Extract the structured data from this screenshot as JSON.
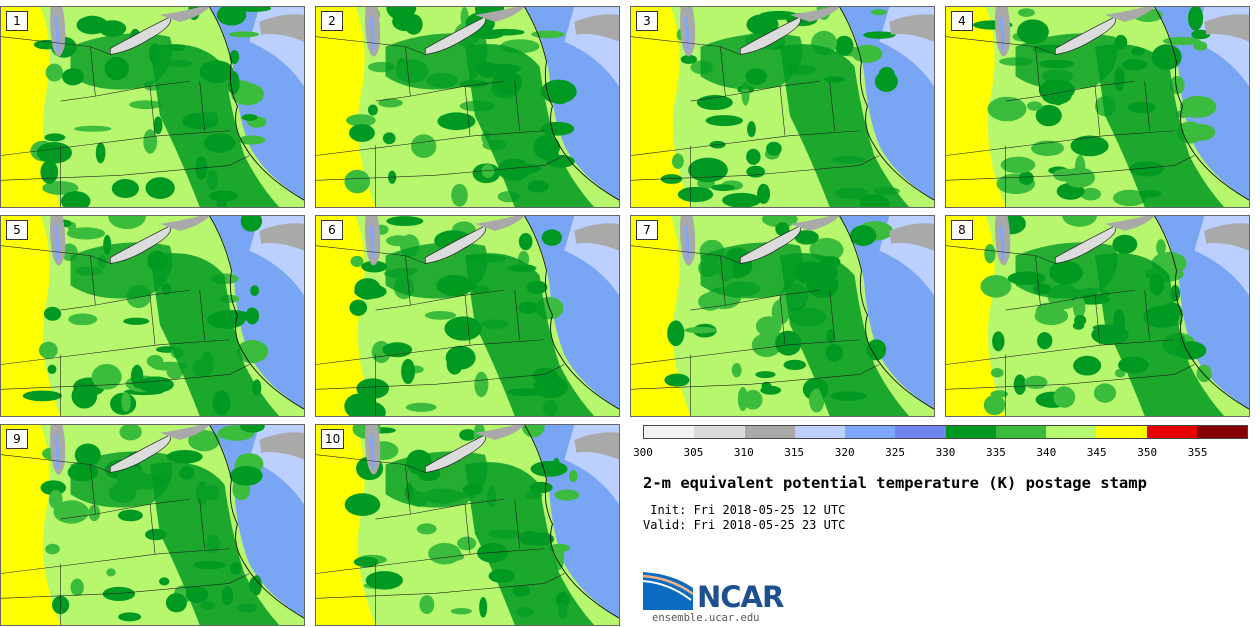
{
  "panels": [
    {
      "label": "1"
    },
    {
      "label": "2"
    },
    {
      "label": "3"
    },
    {
      "label": "4"
    },
    {
      "label": "5"
    },
    {
      "label": "6"
    },
    {
      "label": "7"
    },
    {
      "label": "8"
    },
    {
      "label": "9"
    },
    {
      "label": "10"
    }
  ],
  "colorbar": {
    "ticks": [
      "300",
      "305",
      "310",
      "315",
      "320",
      "325",
      "330",
      "335",
      "340",
      "345",
      "350",
      "355"
    ],
    "colors": [
      "#f2f2f2",
      "#dcdcdc",
      "#a9a9a9",
      "#bcd0ff",
      "#7fa6ff",
      "#6f86f0",
      "#009a22",
      "#3cbc3c",
      "#b6f76e",
      "#ffff00",
      "#e60000",
      "#870000"
    ]
  },
  "title": "2-m equivalent potential temperature (K) postage stamp",
  "init": " Init: Fri 2018-05-25 12 UTC",
  "valid": "Valid: Fri 2018-05-25 23 UTC",
  "logo": {
    "text": "NCAR",
    "url": "ensemble.ucar.edu"
  }
}
